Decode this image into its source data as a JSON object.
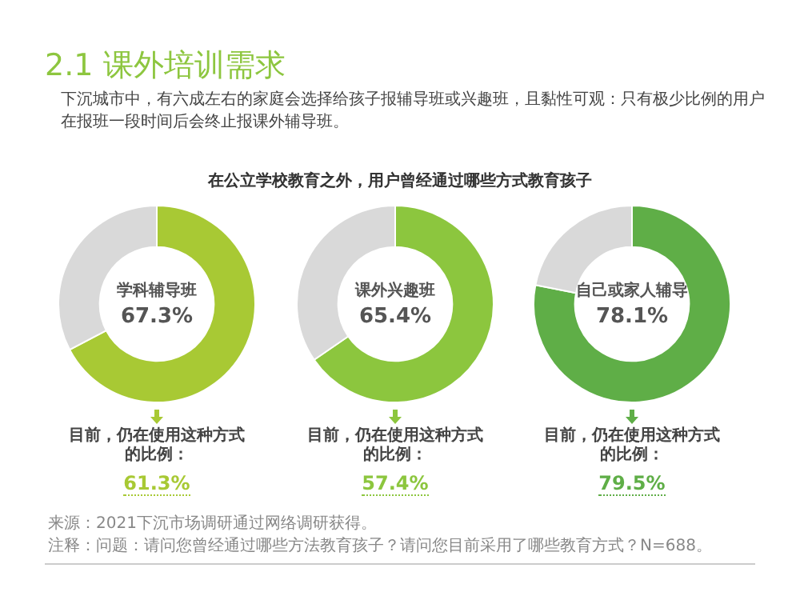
{
  "chart_data": [
    {
      "type": "other",
      "title": "2.1 课外培训需求",
      "subtitle": "下沉城市中，有六成左右的家庭会选择给孩子报辅导班或兴趣班，且黏性可观：只有极少比例的用户在报班一段时间后会终止报课外辅导班。",
      "annotations": [
        "在公立学校教育之外，用户曾经通过哪些方式教育孩子",
        "来源：2021下沉市场调研通过网络调研获得。",
        "注释：问题：请问您曾经通过哪些方法教育孩子？请问您目前采用了哪些教育方式？N=688。"
      ]
    },
    {
      "type": "donut",
      "categories": [
        "学科辅导班",
        null
      ],
      "values": [
        67.3,
        32.7
      ],
      "colors": [
        "#a8c934",
        "#d9d9d9"
      ],
      "value_labels": [
        "67.3%",
        null
      ],
      "annotations": [
        "目前，仍在使用这种方式的比例：",
        "61.3%"
      ]
    },
    {
      "type": "donut",
      "categories": [
        "课外兴趣班",
        null
      ],
      "values": [
        65.4,
        34.6
      ],
      "colors": [
        "#8cc63e",
        "#d9d9d9"
      ],
      "value_labels": [
        "65.4%",
        null
      ],
      "annotations": [
        "目前，仍在使用这种方式的比例：",
        "57.4%"
      ]
    },
    {
      "type": "donut",
      "categories": [
        "自己或家人辅导",
        null
      ],
      "values": [
        78.1,
        21.9
      ],
      "colors": [
        "#5fae47",
        "#d9d9d9"
      ],
      "value_labels": [
        "78.1%",
        null
      ],
      "annotations": [
        "目前，仍在使用这种方式的比例：",
        "79.5%"
      ]
    }
  ]
}
